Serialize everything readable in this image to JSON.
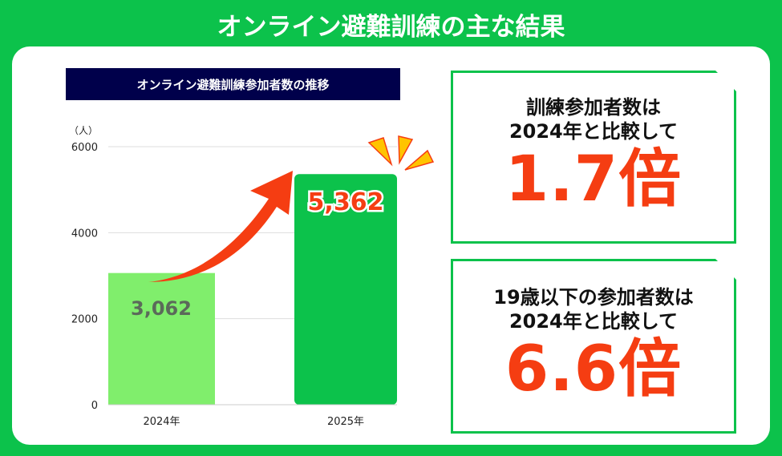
{
  "title": "オンライン避難訓練の主な結果",
  "chart_data": {
    "type": "bar",
    "title": "オンライン避難訓練参加者数の推移",
    "ylabel": "（人）",
    "categories": [
      "2024年",
      "2025年"
    ],
    "values": [
      3062,
      5362
    ],
    "value_labels": [
      "3,062",
      "5,362"
    ],
    "ylim": [
      0,
      6000
    ],
    "yticks": [
      0,
      2000,
      4000,
      6000
    ],
    "grid": true,
    "colors": [
      "#80ee6c",
      "#0cc24b"
    ],
    "arrow_color": "#f53d12"
  },
  "cards": [
    {
      "line1": "訓練参加者数は",
      "line2": "2024年と比較して",
      "value": "1.7倍"
    },
    {
      "line1": "19歳以下の参加者数は",
      "line2": "2024年と比較して",
      "value": "6.6倍"
    }
  ]
}
